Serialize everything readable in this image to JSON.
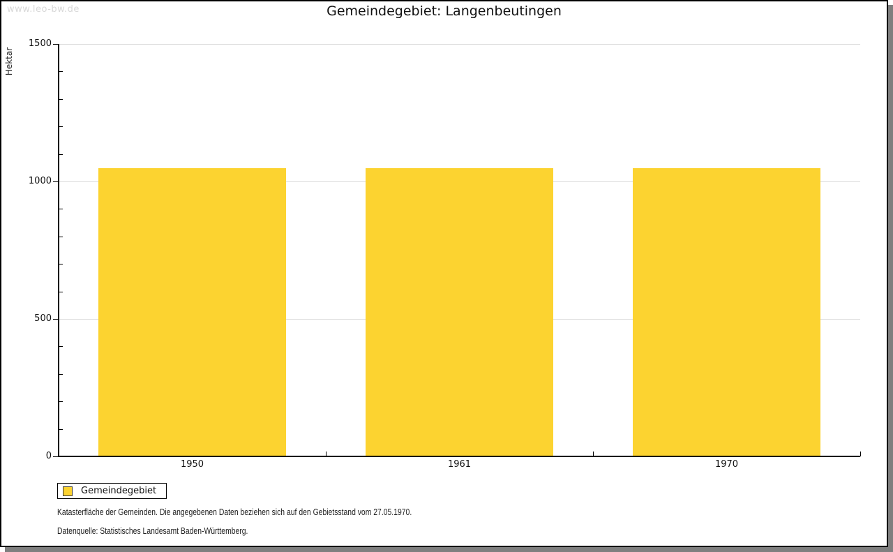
{
  "watermark": "www.leo-bw.de",
  "title": "Gemeindegebiet: Langenbeutingen",
  "chart_data": {
    "type": "bar",
    "title": "Gemeindegebiet: Langenbeutingen",
    "categories": [
      "1950",
      "1961",
      "1970"
    ],
    "series": [
      {
        "name": "Gemeindegebiet",
        "values": [
          1048,
          1048,
          1048
        ]
      }
    ],
    "bar_color": "#fcd330",
    "ylabel": "Hektar",
    "xlabel": "",
    "ylim": [
      0,
      1500
    ],
    "yticks": [
      0,
      500,
      1000,
      1500
    ],
    "minor_tick_interval": 100,
    "grid": true,
    "gridline_color": "#dcdcdc",
    "legend_position": "bottom-left"
  },
  "footnotes": [
    "Katasterfläche der Gemeinden. Die angegebenen Daten beziehen sich auf den Gebietsstand vom 27.05.1970.",
    "Datenquelle: Statistisches Landesamt Baden-Württemberg."
  ],
  "colors": {
    "bar": "#fcd330",
    "gridline": "#dcdcdc",
    "axis": "#000000",
    "shadow": "#7f7f7f",
    "watermark": "#d8d8d8"
  }
}
